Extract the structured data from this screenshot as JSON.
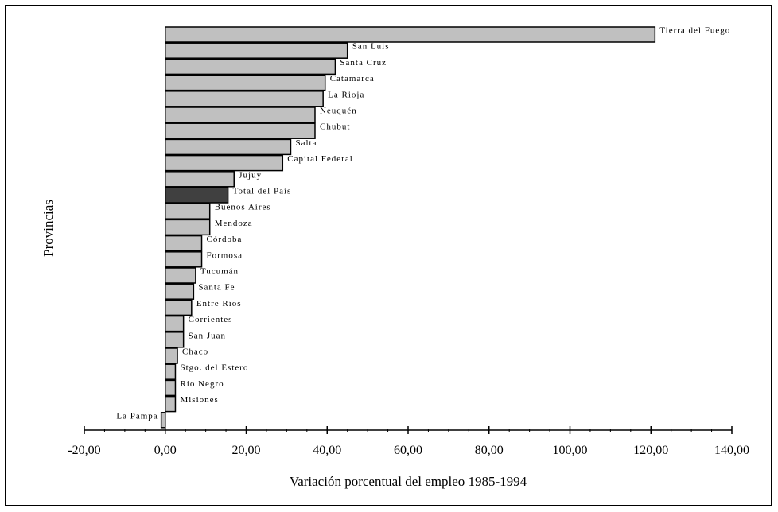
{
  "chart_data": {
    "type": "bar",
    "orientation": "horizontal",
    "xlabel": "Variación porcentual del empleo 1985-1994",
    "ylabel": "Provincias",
    "xlim": [
      -20,
      140
    ],
    "xticks": [
      -20,
      0,
      20,
      40,
      60,
      80,
      100,
      120,
      140
    ],
    "xtick_labels": [
      "-20,00",
      "0,00",
      "20,00",
      "40,00",
      "60,00",
      "80,00",
      "100,00",
      "120,00",
      "140,00"
    ],
    "grid": false,
    "legend": "none",
    "colors": {
      "bar": "#c0c0c0",
      "highlight": "#404040",
      "stroke": "#000000"
    },
    "categories": [
      "Tierra del Fuego",
      "San Luis",
      "Santa Cruz",
      "Catamarca",
      "La Rioja",
      "Neuquén",
      "Chubut",
      "Salta",
      "Capital Federal",
      "Jujuy",
      "Total del País",
      "Buenos Aires",
      "Mendoza",
      "Córdoba",
      "Formosa",
      "Tucumán",
      "Santa Fe",
      "Entre Ríos",
      "Corrientes",
      "San Juan",
      "Chaco",
      "Stgo. del Estero",
      "Río Negro",
      "Misiones",
      "La Pampa"
    ],
    "values": [
      121,
      45,
      42,
      39.5,
      39,
      37,
      37,
      31,
      29,
      17,
      15.5,
      11,
      11,
      9,
      9,
      7.5,
      7,
      6.5,
      4.5,
      4.5,
      3,
      2.5,
      2.5,
      2.5,
      -1
    ],
    "highlight": [
      "Total del País"
    ]
  }
}
